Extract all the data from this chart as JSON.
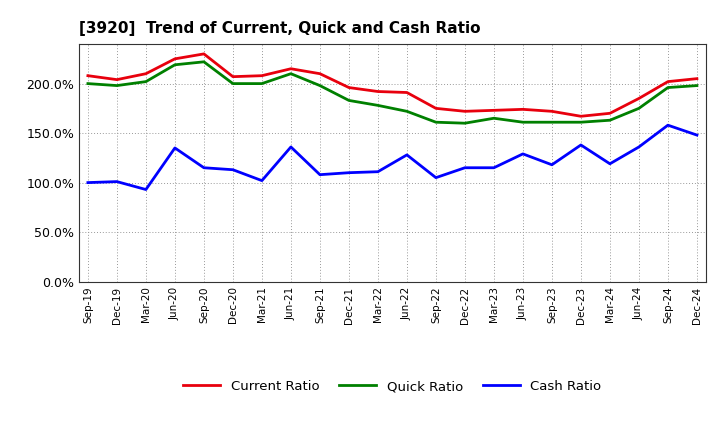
{
  "title": "[3920]  Trend of Current, Quick and Cash Ratio",
  "labels": [
    "Sep-19",
    "Dec-19",
    "Mar-20",
    "Jun-20",
    "Sep-20",
    "Dec-20",
    "Mar-21",
    "Jun-21",
    "Sep-21",
    "Dec-21",
    "Mar-22",
    "Jun-22",
    "Sep-22",
    "Dec-22",
    "Mar-23",
    "Jun-23",
    "Sep-23",
    "Dec-23",
    "Mar-24",
    "Jun-24",
    "Sep-24",
    "Dec-24"
  ],
  "current_ratio": [
    208,
    204,
    210,
    225,
    230,
    207,
    208,
    215,
    210,
    196,
    192,
    191,
    175,
    172,
    173,
    174,
    172,
    167,
    170,
    185,
    202,
    205
  ],
  "quick_ratio": [
    200,
    198,
    202,
    219,
    222,
    200,
    200,
    210,
    198,
    183,
    178,
    172,
    161,
    160,
    165,
    161,
    161,
    161,
    163,
    175,
    196,
    198
  ],
  "cash_ratio": [
    100,
    101,
    93,
    135,
    115,
    113,
    102,
    136,
    108,
    110,
    111,
    128,
    105,
    115,
    115,
    129,
    118,
    138,
    119,
    136,
    158,
    148
  ],
  "current_color": "#e8000d",
  "quick_color": "#008000",
  "cash_color": "#0000ff",
  "ylim": [
    0,
    240
  ],
  "yticks": [
    0,
    50,
    100,
    150,
    200
  ],
  "background_color": "#ffffff",
  "plot_bg_color": "#ffffff",
  "grid_color": "#999999",
  "legend_labels": [
    "Current Ratio",
    "Quick Ratio",
    "Cash Ratio"
  ]
}
